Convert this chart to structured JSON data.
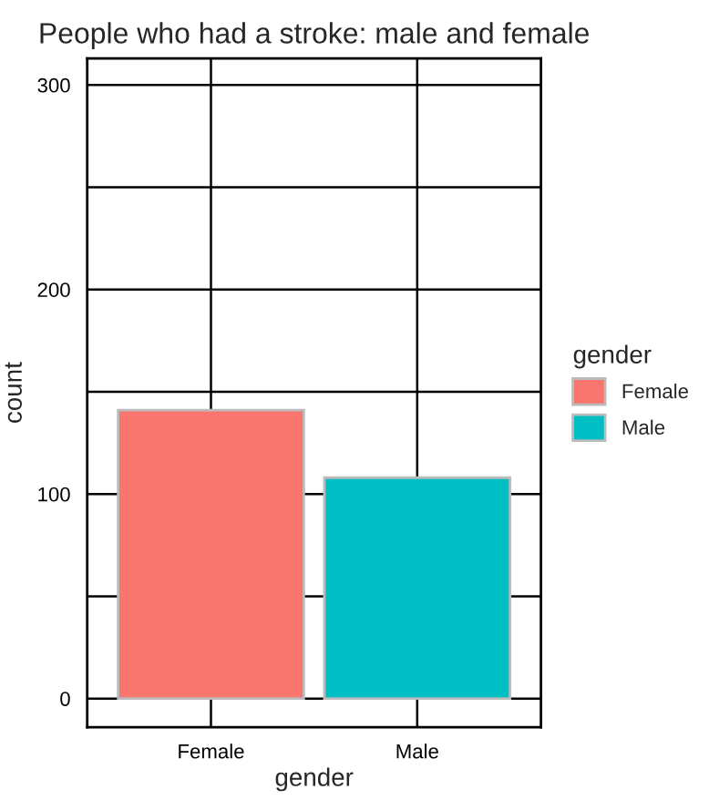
{
  "chart_data": {
    "type": "bar",
    "title": "People who had a stroke: male and female",
    "xlabel": "gender",
    "ylabel": "count",
    "legend_title": "gender",
    "categories": [
      "Female",
      "Male"
    ],
    "series": [
      {
        "name": "Female",
        "color": "#f8766d",
        "values": [
          141,
          null
        ]
      },
      {
        "name": "Male",
        "color": "#00bfc4",
        "values": [
          null,
          108
        ]
      }
    ],
    "ylim": [
      -14,
      313
    ],
    "yticks": [
      0,
      {
        "value": 50,
        "label": null
      },
      100,
      {
        "value": 150,
        "label": null
      },
      200,
      {
        "value": 250,
        "label": null
      },
      300
    ],
    "grid": true,
    "legend": "right"
  }
}
